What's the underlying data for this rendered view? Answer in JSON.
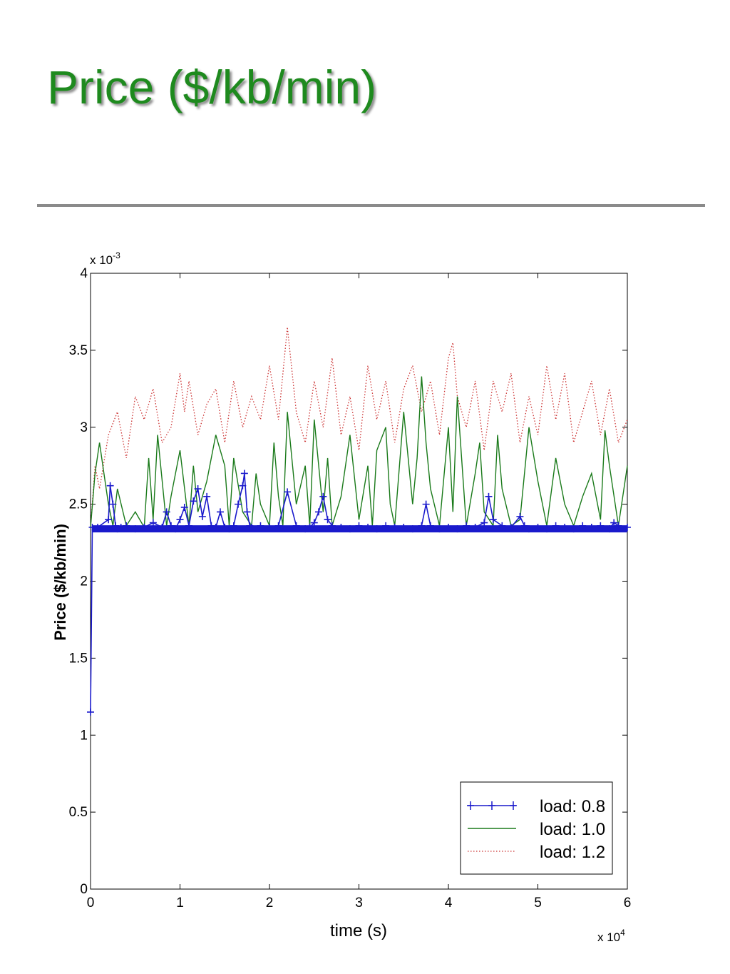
{
  "slide": {
    "title": "Price ($/kb/min)"
  },
  "chart_data": {
    "type": "line",
    "ylabel": "Price ($/kb/min)",
    "xlabel": "time (s)",
    "x_multiplier": "x 10",
    "x_multiplier_exp": "4",
    "y_multiplier": "x 10",
    "y_multiplier_exp": "-3",
    "xlim": [
      0,
      6
    ],
    "ylim": [
      0,
      4
    ],
    "x_ticks": [
      "0",
      "1",
      "2",
      "3",
      "4",
      "5",
      "6"
    ],
    "y_ticks": [
      "0",
      "0.5",
      "1",
      "1.5",
      "2",
      "2.5",
      "3",
      "3.5",
      "4"
    ],
    "grid": false,
    "legend_position": "bottom-right",
    "series": [
      {
        "name": "load: 0.8",
        "color": "#1a1acc",
        "style": "solid-plus-markers",
        "x": [
          0,
          0.02,
          0.08,
          0.2,
          0.22,
          0.25,
          0.28,
          0.3,
          0.34,
          0.4,
          0.5,
          0.6,
          0.7,
          0.8,
          0.85,
          0.9,
          0.95,
          1.0,
          1.05,
          1.1,
          1.15,
          1.2,
          1.25,
          1.3,
          1.35,
          1.4,
          1.45,
          1.5,
          1.55,
          1.6,
          1.65,
          1.7,
          1.72,
          1.75,
          1.78,
          1.8,
          1.9,
          2.0,
          2.1,
          2.2,
          2.3,
          2.4,
          2.45,
          2.5,
          2.55,
          2.6,
          2.65,
          2.7,
          2.8,
          2.9,
          3.0,
          3.1,
          3.2,
          3.3,
          3.4,
          3.5,
          3.6,
          3.7,
          3.75,
          3.8,
          3.9,
          4.0,
          4.1,
          4.2,
          4.3,
          4.4,
          4.45,
          4.5,
          4.6,
          4.7,
          4.8,
          4.85,
          4.9,
          5.0,
          5.1,
          5.2,
          5.3,
          5.4,
          5.5,
          5.6,
          5.7,
          5.8,
          5.85,
          5.9,
          6.0
        ],
        "y": [
          1.15,
          2.35,
          2.35,
          2.4,
          2.62,
          2.5,
          2.36,
          2.34,
          2.35,
          2.36,
          2.34,
          2.35,
          2.38,
          2.35,
          2.45,
          2.36,
          2.34,
          2.4,
          2.48,
          2.36,
          2.52,
          2.6,
          2.42,
          2.55,
          2.36,
          2.35,
          2.45,
          2.35,
          2.34,
          2.36,
          2.5,
          2.62,
          2.7,
          2.45,
          2.36,
          2.35,
          2.36,
          2.35,
          2.36,
          2.58,
          2.36,
          2.34,
          2.35,
          2.38,
          2.45,
          2.55,
          2.4,
          2.36,
          2.35,
          2.34,
          2.36,
          2.35,
          2.34,
          2.36,
          2.35,
          2.35,
          2.34,
          2.36,
          2.5,
          2.36,
          2.34,
          2.35,
          2.34,
          2.36,
          2.35,
          2.38,
          2.55,
          2.4,
          2.36,
          2.35,
          2.42,
          2.36,
          2.34,
          2.35,
          2.34,
          2.36,
          2.35,
          2.34,
          2.36,
          2.35,
          2.36,
          2.34,
          2.38,
          2.36,
          2.35
        ]
      },
      {
        "name": "load: 1.0",
        "color": "#1a7a1a",
        "style": "solid",
        "x": [
          0,
          0.05,
          0.1,
          0.15,
          0.2,
          0.25,
          0.3,
          0.4,
          0.5,
          0.6,
          0.65,
          0.7,
          0.75,
          0.85,
          0.9,
          1.0,
          1.1,
          1.15,
          1.2,
          1.3,
          1.4,
          1.5,
          1.55,
          1.6,
          1.7,
          1.8,
          1.85,
          1.9,
          2.0,
          2.05,
          2.1,
          2.15,
          2.2,
          2.3,
          2.4,
          2.45,
          2.5,
          2.6,
          2.65,
          2.7,
          2.8,
          2.9,
          3.0,
          3.1,
          3.15,
          3.2,
          3.3,
          3.35,
          3.4,
          3.5,
          3.6,
          3.65,
          3.7,
          3.75,
          3.8,
          3.9,
          4.0,
          4.05,
          4.1,
          4.2,
          4.3,
          4.35,
          4.4,
          4.5,
          4.55,
          4.6,
          4.7,
          4.8,
          4.9,
          5.0,
          5.1,
          5.2,
          5.3,
          5.4,
          5.5,
          5.6,
          5.7,
          5.75,
          5.8,
          5.9,
          6.0
        ],
        "y": [
          2.35,
          2.7,
          2.9,
          2.7,
          2.5,
          2.36,
          2.6,
          2.36,
          2.45,
          2.35,
          2.8,
          2.4,
          2.95,
          2.36,
          2.55,
          2.85,
          2.36,
          2.75,
          2.45,
          2.65,
          2.95,
          2.75,
          2.36,
          2.8,
          2.45,
          2.36,
          2.7,
          2.5,
          2.36,
          2.9,
          2.55,
          2.36,
          3.1,
          2.5,
          2.75,
          2.36,
          3.05,
          2.45,
          2.8,
          2.36,
          2.55,
          2.95,
          2.4,
          2.75,
          2.36,
          2.85,
          3.0,
          2.5,
          2.36,
          3.1,
          2.5,
          2.8,
          3.33,
          2.9,
          2.6,
          2.36,
          3.0,
          2.45,
          3.2,
          2.36,
          2.7,
          2.9,
          2.45,
          2.36,
          2.95,
          2.6,
          2.36,
          2.4,
          3.0,
          2.65,
          2.36,
          2.8,
          2.5,
          2.36,
          2.55,
          2.7,
          2.4,
          2.98,
          2.75,
          2.36,
          2.75
        ]
      },
      {
        "name": "load: 1.2",
        "color": "#cc3333",
        "style": "dotted",
        "x": [
          0,
          0.05,
          0.1,
          0.2,
          0.3,
          0.4,
          0.5,
          0.6,
          0.7,
          0.8,
          0.9,
          1.0,
          1.05,
          1.1,
          1.2,
          1.3,
          1.4,
          1.5,
          1.6,
          1.7,
          1.8,
          1.9,
          2.0,
          2.1,
          2.2,
          2.3,
          2.4,
          2.5,
          2.6,
          2.7,
          2.8,
          2.9,
          3.0,
          3.1,
          3.2,
          3.3,
          3.4,
          3.5,
          3.6,
          3.7,
          3.8,
          3.9,
          4.0,
          4.05,
          4.1,
          4.2,
          4.3,
          4.4,
          4.5,
          4.6,
          4.7,
          4.8,
          4.9,
          5.0,
          5.1,
          5.2,
          5.3,
          5.4,
          5.5,
          5.6,
          5.7,
          5.8,
          5.9,
          6.0
        ],
        "y": [
          2.35,
          2.75,
          2.6,
          2.95,
          3.1,
          2.8,
          3.2,
          3.05,
          3.25,
          2.9,
          3.0,
          3.35,
          3.1,
          3.3,
          2.95,
          3.15,
          3.25,
          2.9,
          3.3,
          3.0,
          3.2,
          3.05,
          3.4,
          3.05,
          3.65,
          3.1,
          2.9,
          3.3,
          3.0,
          3.45,
          2.95,
          3.2,
          2.85,
          3.4,
          3.05,
          3.3,
          2.9,
          3.25,
          3.4,
          3.1,
          3.3,
          2.95,
          3.45,
          3.55,
          3.2,
          3.0,
          3.3,
          2.85,
          3.3,
          3.1,
          3.35,
          2.9,
          3.2,
          2.95,
          3.4,
          3.05,
          3.35,
          2.9,
          3.1,
          3.3,
          2.95,
          3.25,
          2.9,
          3.05
        ]
      }
    ]
  }
}
